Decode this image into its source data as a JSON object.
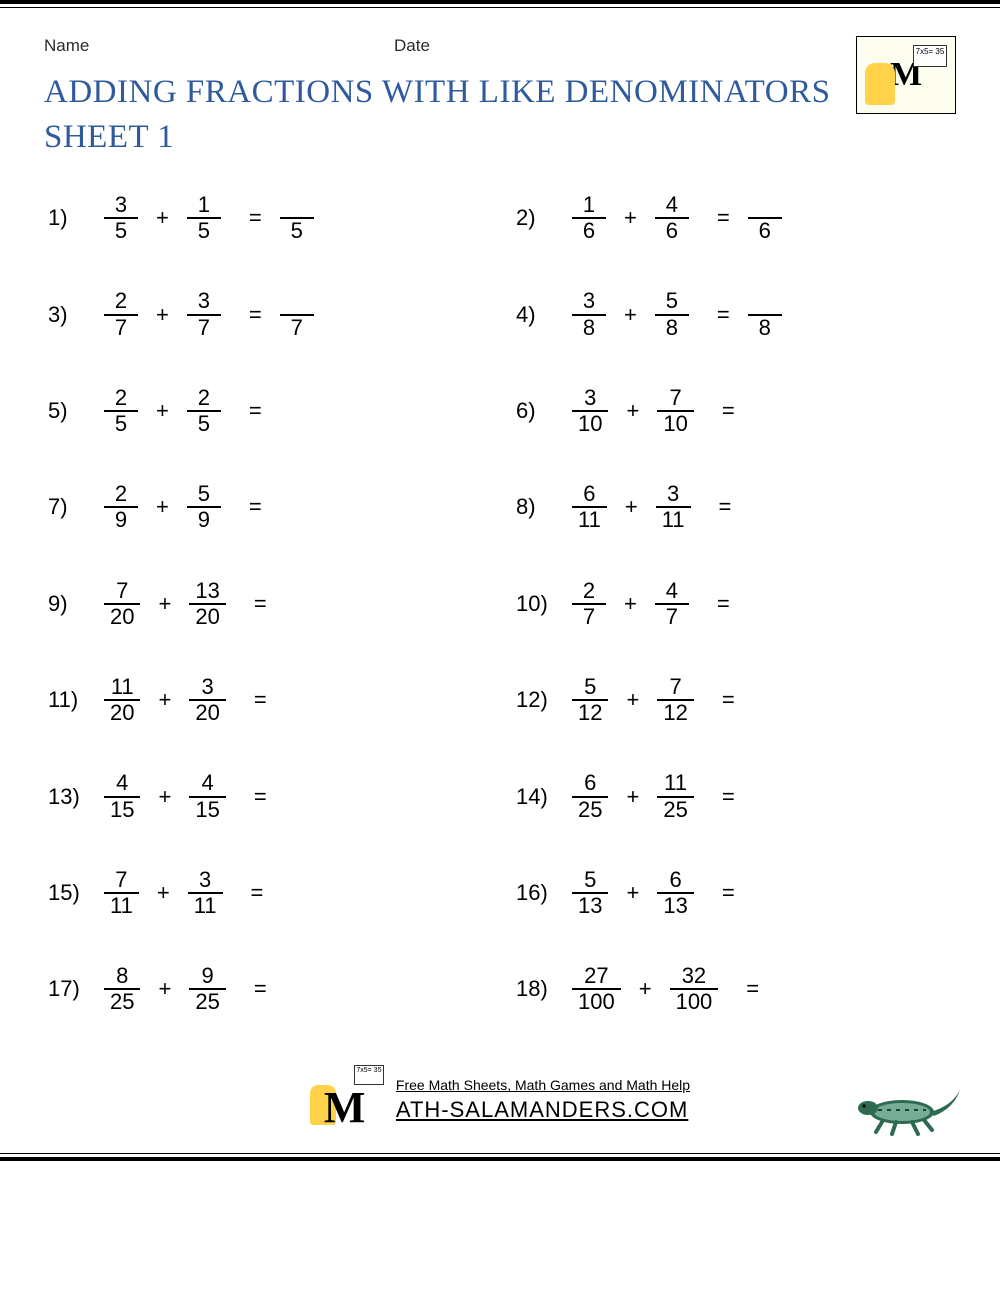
{
  "header": {
    "name_label": "Name",
    "date_label": "Date",
    "title_line1": "ADDING FRACTIONS WITH LIKE DENOMINATORS",
    "title_line2": "SHEET 1",
    "logo_board_text": "7x5=\n35"
  },
  "style": {
    "title_color": "#2f5a9e",
    "body_color": "#000000",
    "background_color": "#ffffff",
    "problem_fontsize": 22,
    "title_fontsize": 33,
    "header_label_fontsize": 17,
    "row_gap": 46,
    "logo_bg": "#fdfdf0",
    "salamander_color": "#ffd24a",
    "lizard_body": "#2d6a4f",
    "lizard_accent": "#a7d8c9"
  },
  "problems": [
    {
      "n": "1)",
      "a_num": "3",
      "a_den": "5",
      "b_num": "1",
      "b_den": "5",
      "ans_den": "5"
    },
    {
      "n": "2)",
      "a_num": "1",
      "a_den": "6",
      "b_num": "4",
      "b_den": "6",
      "ans_den": "6"
    },
    {
      "n": "3)",
      "a_num": "2",
      "a_den": "7",
      "b_num": "3",
      "b_den": "7",
      "ans_den": "7"
    },
    {
      "n": "4)",
      "a_num": "3",
      "a_den": "8",
      "b_num": "5",
      "b_den": "8",
      "ans_den": "8"
    },
    {
      "n": "5)",
      "a_num": "2",
      "a_den": "5",
      "b_num": "2",
      "b_den": "5",
      "ans_den": ""
    },
    {
      "n": "6)",
      "a_num": "3",
      "a_den": "10",
      "b_num": "7",
      "b_den": "10",
      "ans_den": ""
    },
    {
      "n": "7)",
      "a_num": "2",
      "a_den": "9",
      "b_num": "5",
      "b_den": "9",
      "ans_den": ""
    },
    {
      "n": "8)",
      "a_num": "6",
      "a_den": "11",
      "b_num": "3",
      "b_den": "11",
      "ans_den": ""
    },
    {
      "n": "9)",
      "a_num": "7",
      "a_den": "20",
      "b_num": "13",
      "b_den": "20",
      "ans_den": ""
    },
    {
      "n": "10)",
      "a_num": "2",
      "a_den": "7",
      "b_num": "4",
      "b_den": "7",
      "ans_den": ""
    },
    {
      "n": "11)",
      "a_num": "11",
      "a_den": "20",
      "b_num": "3",
      "b_den": "20",
      "ans_den": ""
    },
    {
      "n": "12)",
      "a_num": "5",
      "a_den": "12",
      "b_num": "7",
      "b_den": "12",
      "ans_den": ""
    },
    {
      "n": "13)",
      "a_num": "4",
      "a_den": "15",
      "b_num": "4",
      "b_den": "15",
      "ans_den": ""
    },
    {
      "n": "14)",
      "a_num": "6",
      "a_den": "25",
      "b_num": "11",
      "b_den": "25",
      "ans_den": ""
    },
    {
      "n": "15)",
      "a_num": "7",
      "a_den": "11",
      "b_num": "3",
      "b_den": "11",
      "ans_den": ""
    },
    {
      "n": "16)",
      "a_num": "5",
      "a_den": "13",
      "b_num": "6",
      "b_den": "13",
      "ans_den": ""
    },
    {
      "n": "17)",
      "a_num": "8",
      "a_den": "25",
      "b_num": "9",
      "b_den": "25",
      "ans_den": ""
    },
    {
      "n": "18)",
      "a_num": "27",
      "a_den": "100",
      "b_num": "32",
      "b_den": "100",
      "ans_den": ""
    }
  ],
  "footer": {
    "line1": "Free Math Sheets, Math Games and Math Help",
    "line2": "ATH-SALAMANDERS.COM",
    "logo_board_text": "7x5=\n35"
  }
}
